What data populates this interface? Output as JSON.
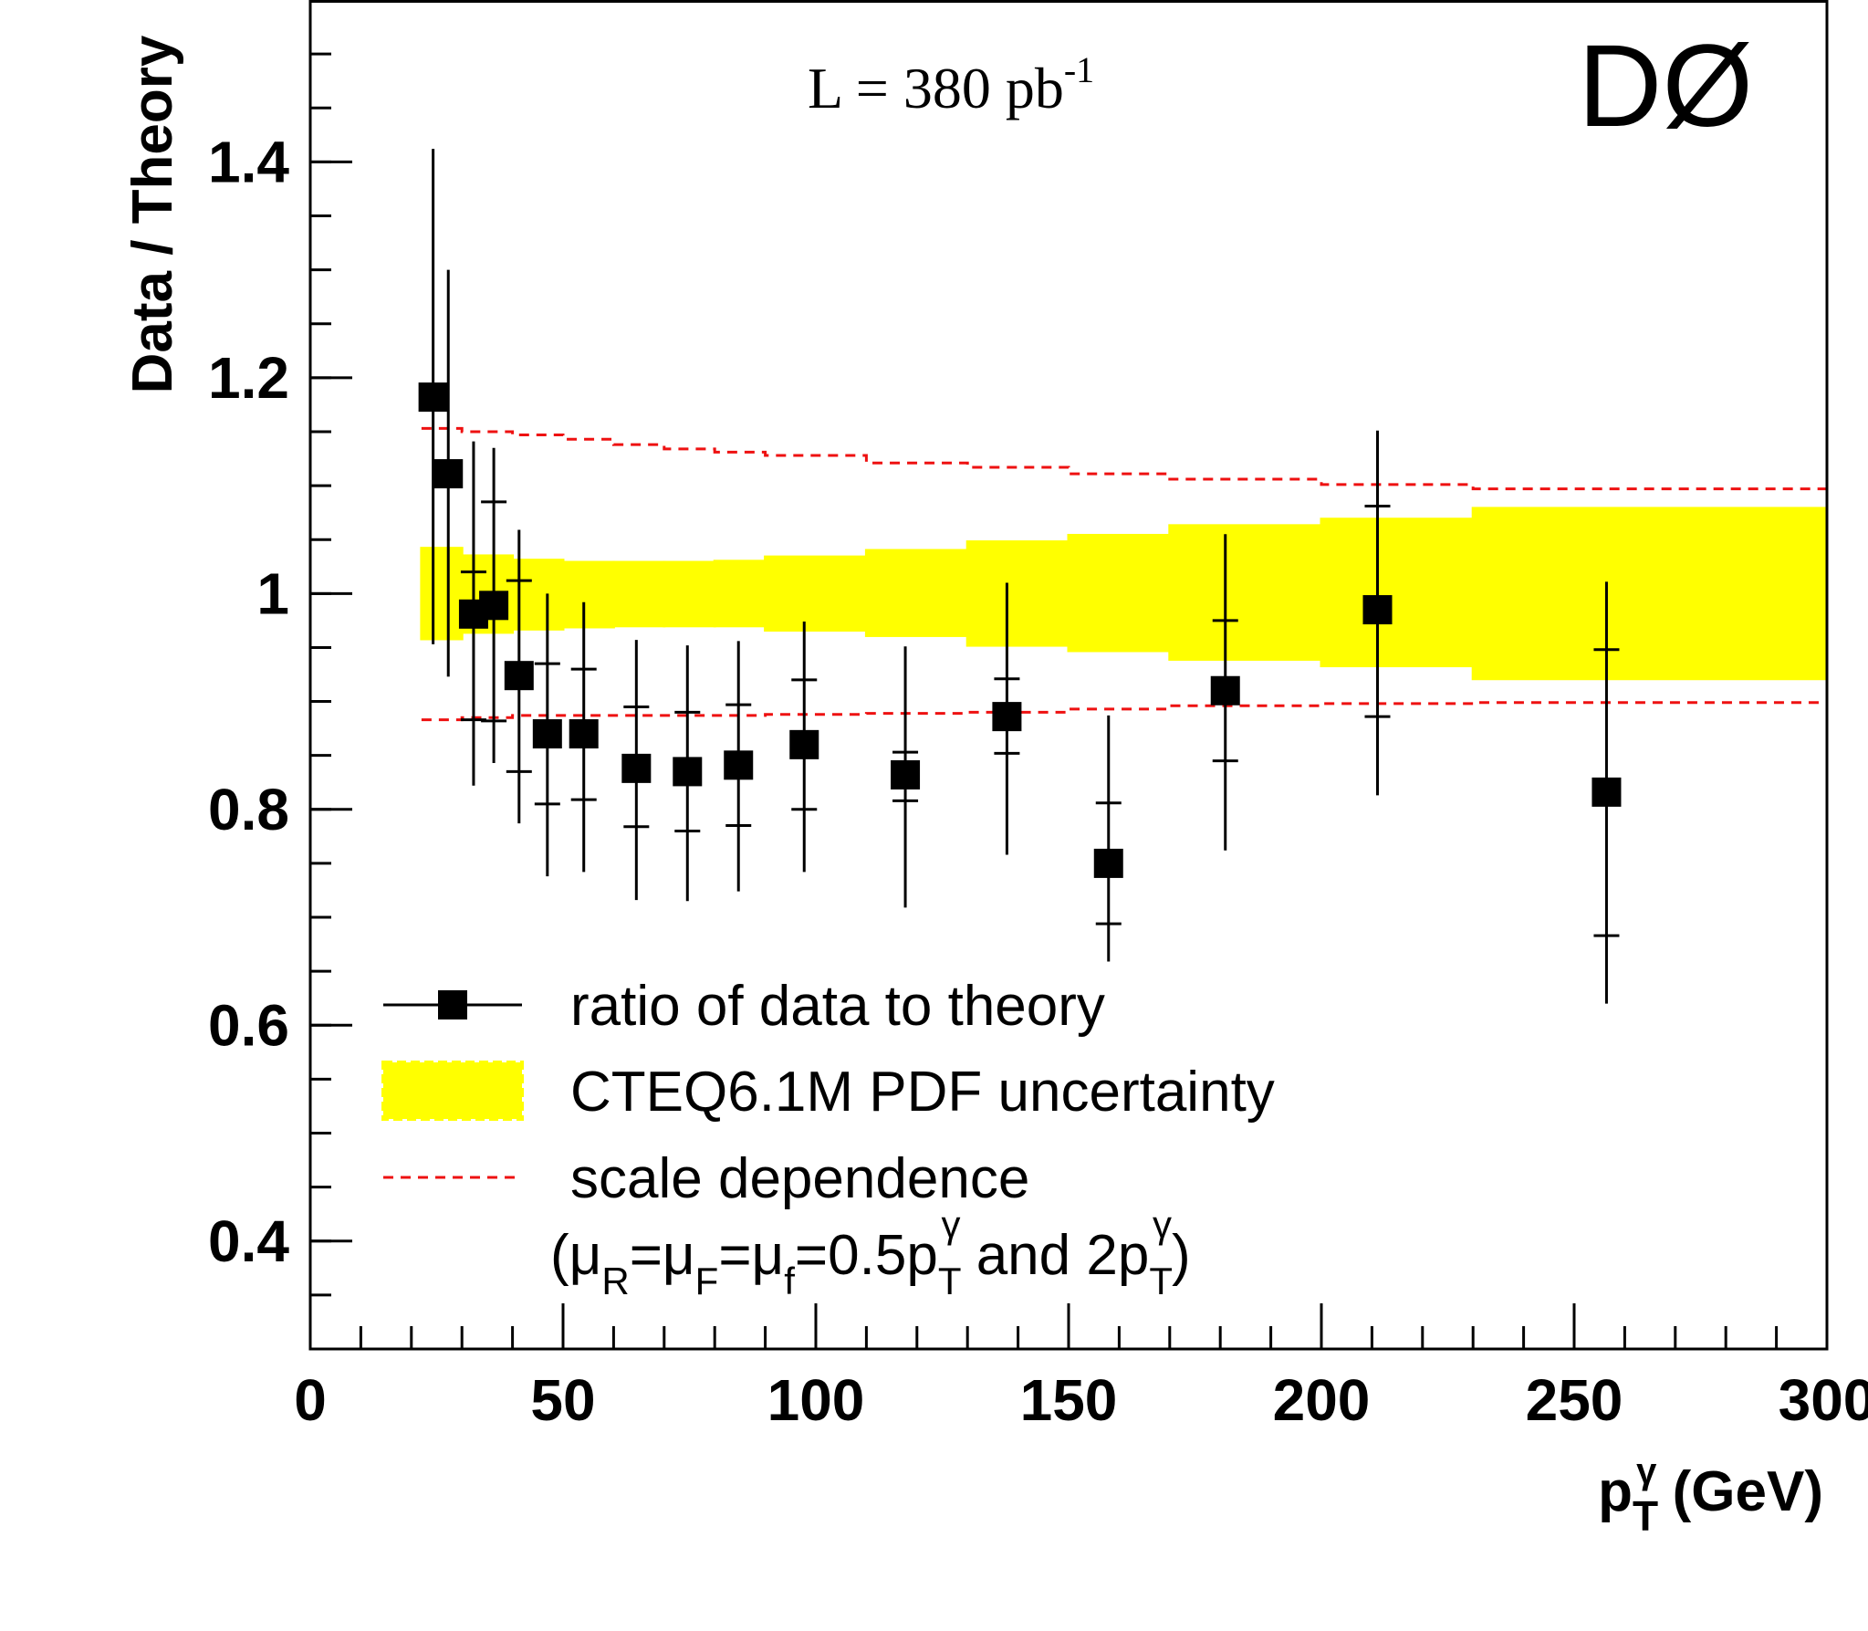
{
  "chart_data": {
    "type": "scatter",
    "experiment_label": "DØ",
    "annotation": {
      "text": "L = 380 pb",
      "superscript": "-1"
    },
    "xlabel": {
      "main": "p",
      "sub": "T",
      "sup": "γ",
      "unit": " (GeV)"
    },
    "ylabel": "Data / Theory",
    "xlim": [
      0,
      300
    ],
    "ylim": [
      0.3,
      1.55
    ],
    "x_major_ticks": [
      0,
      50,
      100,
      150,
      200,
      250,
      300
    ],
    "x_minor_step": 10,
    "y_major_ticks": [
      0.4,
      0.6,
      0.8,
      1.0,
      1.2,
      1.4
    ],
    "y_tick_labels": [
      "0.4",
      "0.6",
      "0.8",
      "1",
      "1.2",
      "1.4"
    ],
    "y_minor_step": 0.05,
    "legend": [
      {
        "label": "ratio of data to theory",
        "kind": "marker"
      },
      {
        "label": "CTEQ6.1M PDF uncertainty",
        "kind": "band"
      },
      {
        "label": "scale dependence",
        "kind": "dashed"
      }
    ],
    "legend_note": {
      "parts": [
        {
          "t": "(μ"
        },
        {
          "t": "R",
          "s": "sub"
        },
        {
          "t": "=μ"
        },
        {
          "t": "F",
          "s": "sub"
        },
        {
          "t": "=μ"
        },
        {
          "t": "f",
          "s": "sub"
        },
        {
          "t": "=0.5p"
        },
        {
          "t": "T",
          "s": "sub"
        },
        {
          "t": "γ",
          "s": "sup"
        },
        {
          "t": " and 2p"
        },
        {
          "t": "T",
          "s": "sub"
        },
        {
          "t": "γ",
          "s": "sup"
        },
        {
          "t": ")"
        }
      ]
    },
    "series": [
      {
        "name": "ratio of data to theory",
        "color": "#000000",
        "points": [
          {
            "x": 24.3,
            "y": 1.182,
            "stat": [
              1.0,
              1.0
            ],
            "total": [
              0.953,
              1.412
            ]
          },
          {
            "x": 27.3,
            "y": 1.111,
            "stat": [
              1.0,
              1.0
            ],
            "total": [
              0.923,
              1.3
            ]
          },
          {
            "x": 32.3,
            "y": 0.981,
            "stat": [
              0.883,
              1.02
            ],
            "total": [
              0.822,
              1.141
            ]
          },
          {
            "x": 36.3,
            "y": 0.989,
            "stat": [
              0.882,
              1.085
            ],
            "total": [
              0.843,
              1.135
            ]
          },
          {
            "x": 41.3,
            "y": 0.924,
            "stat": [
              0.835,
              1.012
            ],
            "total": [
              0.787,
              1.059
            ]
          },
          {
            "x": 46.9,
            "y": 0.87,
            "stat": [
              0.805,
              0.935
            ],
            "total": [
              0.738,
              1.0
            ]
          },
          {
            "x": 54.1,
            "y": 0.87,
            "stat": [
              0.809,
              0.93
            ],
            "total": [
              0.742,
              0.992
            ]
          },
          {
            "x": 64.5,
            "y": 0.838,
            "stat": [
              0.784,
              0.895
            ],
            "total": [
              0.716,
              0.957
            ]
          },
          {
            "x": 74.6,
            "y": 0.835,
            "stat": [
              0.78,
              0.89
            ],
            "total": [
              0.715,
              0.952
            ]
          },
          {
            "x": 84.7,
            "y": 0.841,
            "stat": [
              0.785,
              0.897
            ],
            "total": [
              0.724,
              0.956
            ]
          },
          {
            "x": 97.7,
            "y": 0.86,
            "stat": [
              0.8,
              0.92
            ],
            "total": [
              0.742,
              0.974
            ]
          },
          {
            "x": 117.7,
            "y": 0.832,
            "stat": [
              0.808,
              0.853
            ],
            "total": [
              0.709,
              0.951
            ]
          },
          {
            "x": 137.8,
            "y": 0.886,
            "stat": [
              0.852,
              0.921
            ],
            "total": [
              0.758,
              1.01
            ]
          },
          {
            "x": 157.9,
            "y": 0.75,
            "stat": [
              0.694,
              0.806
            ],
            "total": [
              0.659,
              0.887
            ]
          },
          {
            "x": 181.0,
            "y": 0.91,
            "stat": [
              0.845,
              0.975
            ],
            "total": [
              0.762,
              1.055
            ]
          },
          {
            "x": 211.1,
            "y": 0.985,
            "stat": [
              0.886,
              1.081
            ],
            "total": [
              0.813,
              1.151
            ]
          },
          {
            "x": 256.4,
            "y": 0.816,
            "stat": [
              0.683,
              0.948
            ],
            "total": [
              0.62,
              1.011
            ]
          }
        ]
      }
    ],
    "pdf_band": {
      "name": "CTEQ6.1M PDF uncertainty",
      "color": "#ffff00",
      "bins": [
        {
          "x0": 22,
          "x1": 30,
          "lo": 0.958,
          "hi": 1.042
        },
        {
          "x0": 30,
          "x1": 40,
          "lo": 0.964,
          "hi": 1.035
        },
        {
          "x0": 40,
          "x1": 50,
          "lo": 0.967,
          "hi": 1.031
        },
        {
          "x0": 50,
          "x1": 60,
          "lo": 0.969,
          "hi": 1.029
        },
        {
          "x0": 60,
          "x1": 70,
          "lo": 0.97,
          "hi": 1.029
        },
        {
          "x0": 70,
          "x1": 80,
          "lo": 0.97,
          "hi": 1.029
        },
        {
          "x0": 80,
          "x1": 90,
          "lo": 0.97,
          "hi": 1.03
        },
        {
          "x0": 90,
          "x1": 110,
          "lo": 0.966,
          "hi": 1.034
        },
        {
          "x0": 110,
          "x1": 130,
          "lo": 0.961,
          "hi": 1.04
        },
        {
          "x0": 130,
          "x1": 150,
          "lo": 0.952,
          "hi": 1.048
        },
        {
          "x0": 150,
          "x1": 170,
          "lo": 0.947,
          "hi": 1.054
        },
        {
          "x0": 170,
          "x1": 200,
          "lo": 0.939,
          "hi": 1.063
        },
        {
          "x0": 200,
          "x1": 230,
          "lo": 0.933,
          "hi": 1.069
        },
        {
          "x0": 230,
          "x1": 300,
          "lo": 0.921,
          "hi": 1.079
        }
      ]
    },
    "scale_band": {
      "name": "scale dependence",
      "color": "#ee1111",
      "upper": [
        [
          22,
          1.153
        ],
        [
          30,
          1.15
        ],
        [
          40,
          1.147
        ],
        [
          50,
          1.143
        ],
        [
          60,
          1.138
        ],
        [
          70,
          1.134
        ],
        [
          80,
          1.131
        ],
        [
          90,
          1.128
        ],
        [
          110,
          1.121
        ],
        [
          130,
          1.117
        ],
        [
          150,
          1.111
        ],
        [
          170,
          1.106
        ],
        [
          200,
          1.101
        ],
        [
          230,
          1.097
        ],
        [
          300,
          1.097
        ]
      ],
      "lower": [
        [
          22,
          0.883
        ],
        [
          30,
          0.885
        ],
        [
          40,
          0.887
        ],
        [
          50,
          0.887
        ],
        [
          60,
          0.887
        ],
        [
          70,
          0.887
        ],
        [
          80,
          0.887
        ],
        [
          90,
          0.888
        ],
        [
          110,
          0.889
        ],
        [
          130,
          0.89
        ],
        [
          150,
          0.893
        ],
        [
          170,
          0.896
        ],
        [
          200,
          0.898
        ],
        [
          230,
          0.899
        ],
        [
          300,
          0.9
        ]
      ]
    }
  }
}
